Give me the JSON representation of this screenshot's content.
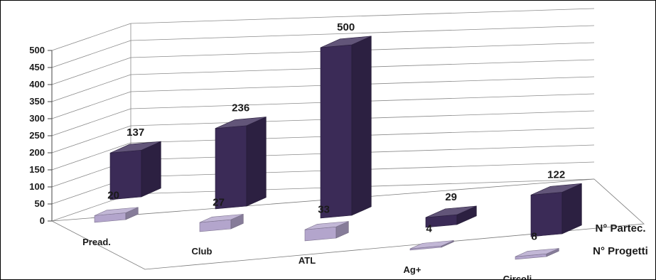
{
  "chart_data": {
    "type": "bar",
    "categories": [
      "Pread.",
      "Club",
      "ATL",
      "Ag+",
      "Circoli"
    ],
    "series": [
      {
        "name": "N° Partec.",
        "values": [
          137,
          236,
          500,
          29,
          122
        ],
        "color": "#3b2b57"
      },
      {
        "name": "N° Progetti",
        "values": [
          20,
          27,
          33,
          4,
          8
        ],
        "color": "#b3a5cc"
      }
    ],
    "yticks": [
      0,
      50,
      100,
      150,
      200,
      250,
      300,
      350,
      400,
      450,
      500
    ],
    "ylim": [
      0,
      500
    ],
    "grid": true,
    "style": "3d-columns"
  }
}
